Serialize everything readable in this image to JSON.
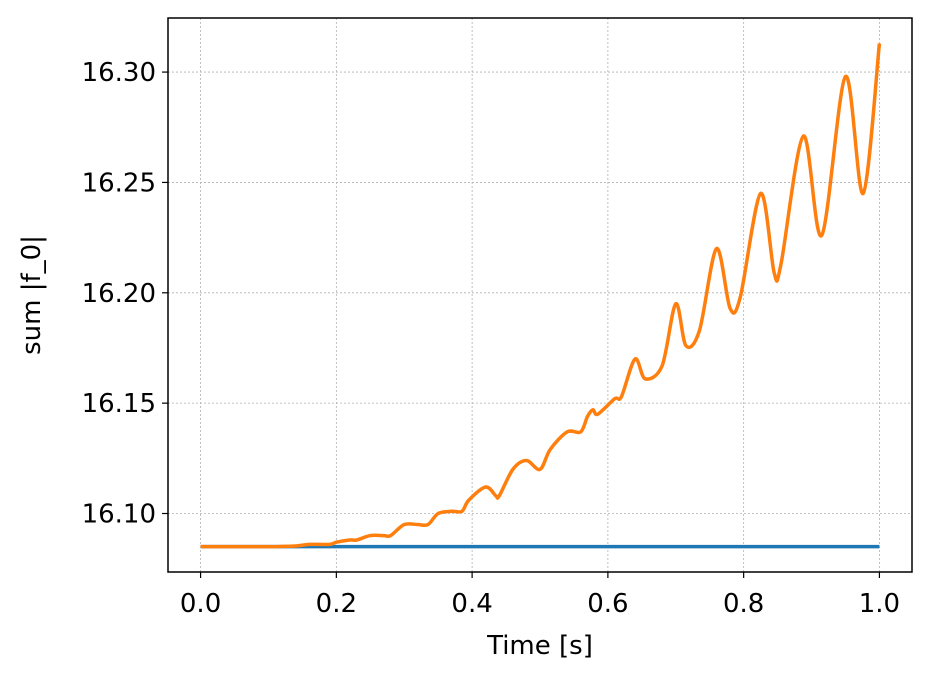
{
  "chart_data": {
    "type": "line",
    "title": "",
    "xlabel": "Time [s]",
    "ylabel": "sum |f_0|",
    "xlim": [
      -0.048,
      1.048
    ],
    "ylim": [
      16.0735,
      16.3245
    ],
    "xticks": [
      "0.0",
      "0.2",
      "0.4",
      "0.6",
      "0.8",
      "1.0"
    ],
    "yticks": [
      "16.10",
      "16.15",
      "16.20",
      "16.25",
      "16.30"
    ],
    "grid": true,
    "legend": "none",
    "series": [
      {
        "color": "#1f77b4",
        "x": [
          0.0,
          1.0
        ],
        "y": [
          16.085,
          16.085
        ]
      },
      {
        "color": "#ff7f0e",
        "x": [
          0.0,
          0.1,
          0.14,
          0.16,
          0.19,
          0.2,
          0.22,
          0.23,
          0.25,
          0.27,
          0.28,
          0.3,
          0.32,
          0.335,
          0.35,
          0.37,
          0.385,
          0.395,
          0.42,
          0.435,
          0.44,
          0.46,
          0.48,
          0.5,
          0.515,
          0.54,
          0.56,
          0.57,
          0.578,
          0.585,
          0.61,
          0.62,
          0.64,
          0.655,
          0.68,
          0.7,
          0.715,
          0.735,
          0.76,
          0.78,
          0.795,
          0.825,
          0.845,
          0.855,
          0.888,
          0.915,
          0.95,
          0.976,
          1.0
        ],
        "y": [
          16.085,
          16.085,
          16.0853,
          16.086,
          16.086,
          16.087,
          16.088,
          16.088,
          16.09,
          16.09,
          16.09,
          16.095,
          16.095,
          16.095,
          16.1,
          16.101,
          16.101,
          16.106,
          16.112,
          16.108,
          16.108,
          16.12,
          16.124,
          16.12,
          16.129,
          16.137,
          16.137,
          16.144,
          16.147,
          16.145,
          16.152,
          16.153,
          16.17,
          16.161,
          16.167,
          16.195,
          16.176,
          16.183,
          16.22,
          16.193,
          16.198,
          16.245,
          16.209,
          16.213,
          16.271,
          16.226,
          16.298,
          16.245,
          16.313
        ]
      }
    ]
  }
}
